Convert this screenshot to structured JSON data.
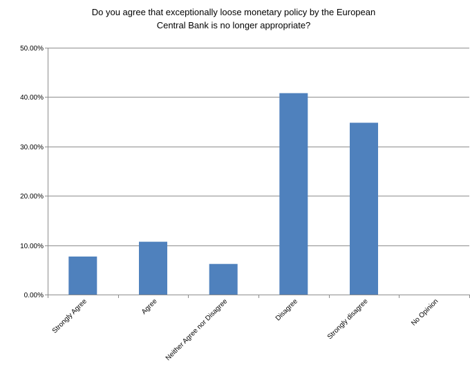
{
  "chart_data": {
    "type": "bar",
    "title_lines": [
      "Do you agree that exceptionally loose monetary policy by the European",
      "Central Bank is no longer appropriate?"
    ],
    "categories": [
      "Strongly Agree",
      "Agree",
      "Neither Agree nor Disagree",
      "Disagree",
      "Strongly disagree",
      "No Opinion"
    ],
    "values": [
      7.7,
      10.7,
      6.2,
      40.8,
      34.8,
      0
    ],
    "ylim": [
      0,
      50
    ],
    "yticks": [
      0,
      10,
      20,
      30,
      40,
      50
    ],
    "ytick_labels": [
      "0.00%",
      "10.00%",
      "20.00%",
      "30.00%",
      "40.00%",
      "50.00%"
    ],
    "grid": true,
    "legend": "none",
    "bar_color": "#4F81BD",
    "grid_color": "#8C8C8C"
  }
}
